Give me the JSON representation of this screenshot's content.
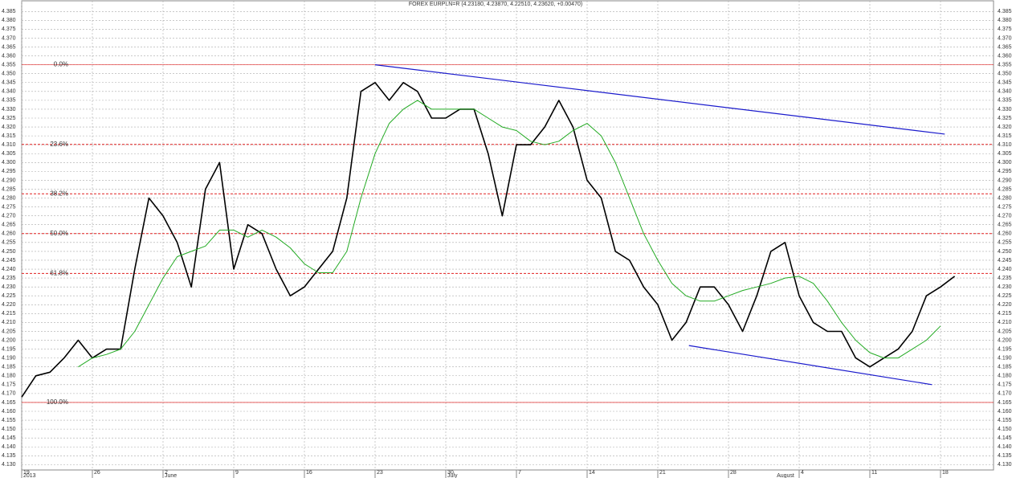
{
  "chart_data": {
    "type": "line",
    "title": "FOREX EURPLN=R (4.23180, 4.23870, 4.22510, 4.23620, +0.00470)",
    "xlim": [
      0,
      68.75
    ],
    "ylim": [
      4.127,
      4.391
    ],
    "grid": true,
    "xticks": [
      {
        "value": 0,
        "label": "19"
      },
      {
        "value": 5,
        "label": "26"
      },
      {
        "value": 10,
        "label": "2"
      },
      {
        "value": 15,
        "label": "9"
      },
      {
        "value": 20,
        "label": "16"
      },
      {
        "value": 25,
        "label": "23"
      },
      {
        "value": 30,
        "label": "30"
      },
      {
        "value": 35,
        "label": "7"
      },
      {
        "value": 40,
        "label": "14"
      },
      {
        "value": 45,
        "label": "21"
      },
      {
        "value": 50,
        "label": "28"
      },
      {
        "value": 55,
        "label": "4"
      },
      {
        "value": 60,
        "label": "11"
      },
      {
        "value": 65,
        "label": "18"
      }
    ],
    "month_labels": [
      {
        "value": 0,
        "label": "2013"
      },
      {
        "value": 10,
        "label": "June"
      },
      {
        "value": 30,
        "label": "July"
      },
      {
        "value": 53.3,
        "label": "August"
      }
    ],
    "yticks": [
      {
        "value": 4.13,
        "label": "4.130"
      },
      4.135,
      {
        "value": 4.14,
        "label": "4.140"
      },
      4.145,
      {
        "value": 4.15,
        "label": "4.150"
      },
      4.155,
      {
        "value": 4.16,
        "label": "4.160"
      },
      4.165,
      {
        "value": 4.17,
        "label": "4.170"
      },
      4.175,
      {
        "value": 4.18,
        "label": "4.180"
      },
      4.185,
      {
        "value": 4.19,
        "label": "4.190"
      },
      4.195,
      {
        "value": 4.2,
        "label": "4.200"
      },
      4.205,
      {
        "value": 4.21,
        "label": "4.210"
      },
      4.215,
      {
        "value": 4.22,
        "label": "4.220"
      },
      4.225,
      {
        "value": 4.23,
        "label": "4.230"
      },
      4.235,
      {
        "value": 4.24,
        "label": "4.240"
      },
      4.245,
      {
        "value": 4.25,
        "label": "4.250"
      },
      4.255,
      {
        "value": 4.26,
        "label": "4.260"
      },
      4.265,
      {
        "value": 4.27,
        "label": "4.270"
      },
      4.275,
      {
        "value": 4.28,
        "label": "4.280"
      },
      4.285,
      {
        "value": 4.29,
        "label": "4.290"
      },
      4.295,
      {
        "value": 4.3,
        "label": "4.300"
      },
      4.305,
      {
        "value": 4.31,
        "label": "4.310"
      },
      4.315,
      {
        "value": 4.32,
        "label": "4.320"
      },
      4.325,
      {
        "value": 4.33,
        "label": "4.330"
      },
      4.335,
      {
        "value": 4.34,
        "label": "4.340"
      },
      4.345,
      {
        "value": 4.35,
        "label": "4.350"
      },
      4.355,
      {
        "value": 4.36,
        "label": "4.360"
      },
      4.365,
      {
        "value": 4.37,
        "label": "4.370"
      },
      4.375,
      {
        "value": 4.38,
        "label": "4.380"
      },
      4.385
    ],
    "series": [
      {
        "color": "#000000",
        "width": 1.6,
        "values": [
          4.168,
          4.18,
          4.182,
          4.19,
          4.2,
          4.19,
          4.195,
          4.195,
          4.24,
          4.28,
          4.27,
          4.255,
          4.23,
          4.285,
          4.3,
          4.24,
          4.265,
          4.26,
          4.24,
          4.225,
          4.23,
          4.24,
          4.25,
          4.28,
          4.34,
          4.345,
          4.335,
          4.345,
          4.34,
          4.325,
          4.325,
          4.33,
          4.33,
          4.305,
          4.27,
          4.31,
          4.31,
          4.32,
          4.335,
          4.32,
          4.29,
          4.28,
          4.25,
          4.245,
          4.23,
          4.22,
          4.2,
          4.21,
          4.23,
          4.23,
          4.22,
          4.205,
          4.225,
          4.25,
          4.255,
          4.225,
          4.21,
          4.205,
          4.205,
          4.19,
          4.185,
          4.19,
          4.195,
          4.205,
          4.225,
          4.23,
          4.236
        ]
      },
      {
        "color": "#22aa22",
        "width": 1,
        "values": [
          null,
          null,
          null,
          null,
          4.185,
          4.19,
          4.192,
          4.195,
          4.205,
          4.22,
          4.235,
          4.247,
          4.25,
          4.253,
          4.262,
          4.262,
          4.258,
          4.262,
          4.258,
          4.252,
          4.243,
          4.238,
          4.238,
          4.25,
          4.28,
          4.305,
          4.322,
          4.33,
          4.335,
          4.33,
          4.33,
          4.33,
          4.33,
          4.325,
          4.32,
          4.318,
          4.312,
          4.31,
          4.312,
          4.318,
          4.322,
          4.315,
          4.3,
          4.28,
          4.26,
          4.245,
          4.232,
          4.225,
          4.222,
          4.222,
          4.225,
          4.228,
          4.23,
          4.232,
          4.235,
          4.236,
          4.232,
          4.222,
          4.21,
          4.2,
          4.193,
          4.19,
          4.19,
          4.195,
          4.2,
          4.208
        ]
      }
    ],
    "fib_color": "#e02020",
    "fib_levels": [
      {
        "value": 4.355,
        "label": "0.0%",
        "style": "solid"
      },
      {
        "value": 4.3102,
        "label": "23.6%",
        "style": "dashed"
      },
      {
        "value": 4.2824,
        "label": "38.2%",
        "style": "dashed"
      },
      {
        "value": 4.26,
        "label": "50.0%",
        "style": "dashed"
      },
      {
        "value": 4.2376,
        "label": "61.8%",
        "style": "dashed"
      },
      {
        "value": 4.165,
        "label": "100.0%",
        "style": "solid"
      }
    ],
    "trendlines": [
      {
        "color": "#1a1acc",
        "points": [
          [
            25,
            4.355
          ],
          [
            65.3,
            4.316
          ]
        ]
      },
      {
        "color": "#1a1acc",
        "points": [
          [
            47.2,
            4.197
          ],
          [
            64.4,
            4.175
          ]
        ]
      }
    ]
  }
}
